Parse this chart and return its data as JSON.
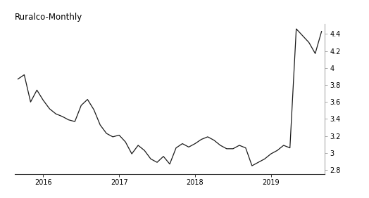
{
  "title": "Ruralco-Monthly",
  "title_fontsize": 8.5,
  "line_color": "#1a1a1a",
  "line_width": 0.9,
  "background_color": "#ffffff",
  "ylim": [
    2.75,
    4.52
  ],
  "yticks": [
    2.8,
    3.0,
    3.2,
    3.4,
    3.6,
    3.8,
    4.0,
    4.2,
    4.4
  ],
  "x_data": [
    3.87,
    3.92,
    3.6,
    3.74,
    3.62,
    3.52,
    3.46,
    3.43,
    3.39,
    3.37,
    3.56,
    3.63,
    3.51,
    3.33,
    3.23,
    3.19,
    3.21,
    3.13,
    2.99,
    3.09,
    3.03,
    2.93,
    2.89,
    2.96,
    2.87,
    3.06,
    3.11,
    3.07,
    3.11,
    3.16,
    3.19,
    3.15,
    3.09,
    3.05,
    3.05,
    3.09,
    3.06,
    2.85,
    2.89,
    2.93,
    2.99,
    3.03,
    3.09,
    3.06,
    4.46,
    4.38,
    4.3,
    4.17,
    4.43
  ],
  "xtick_positions": [
    4,
    16,
    28,
    40
  ],
  "xtick_labels": [
    "2016",
    "2017",
    "2018",
    "2019"
  ],
  "right_spine_color": "#aaaaaa",
  "bottom_spine_color": "#333333"
}
